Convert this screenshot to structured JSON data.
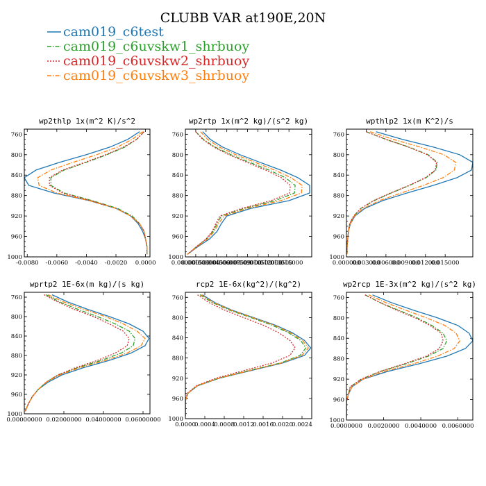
{
  "figure": {
    "title": "CLUBB VAR at190E,20N",
    "legend": [
      {
        "name": "cam019_c6test",
        "color": "#1f77b4",
        "dash": "solid"
      },
      {
        "name": "cam019_c6uvskw1_shrbuoy",
        "color": "#2ca02c",
        "dash": "dashdot"
      },
      {
        "name": "cam019_c6uvskw2_shrbuoy",
        "color": "#d62728",
        "dash": "dotted"
      },
      {
        "name": "cam019_c6uvskw3_shrbuoy",
        "color": "#ff7f0e",
        "dash": "dashdot"
      }
    ]
  },
  "chart_data": [
    {
      "type": "line",
      "title": "wp2thlp  1x(m^2 K)/s^2",
      "ylim": [
        1000,
        750
      ],
      "xlim": [
        -0.0082,
        0.0003
      ],
      "yticks": [
        "760",
        "800",
        "840",
        "880",
        "920",
        "960",
        "1000"
      ],
      "xticks": [
        {
          "v": -0.008,
          "label": "-0.0080"
        },
        {
          "v": -0.006,
          "label": "-0.0060"
        },
        {
          "v": -0.004,
          "label": "-0.0040"
        },
        {
          "v": -0.002,
          "label": "-0.0020"
        },
        {
          "v": 0.0,
          "label": "0.0000"
        }
      ],
      "y": [
        755,
        770,
        785,
        800,
        815,
        830,
        845,
        860,
        875,
        890,
        905,
        920,
        935,
        950,
        965,
        980,
        995
      ],
      "series": [
        {
          "values": [
            -0.0004,
            -0.0012,
            -0.0024,
            -0.004,
            -0.0058,
            -0.0074,
            -0.0082,
            -0.0079,
            -0.0062,
            -0.0038,
            -0.002,
            -0.001,
            -0.0005,
            -0.0002,
            0.0,
            0.0001,
            0.0001
          ]
        },
        {
          "values": [
            -0.0001,
            -0.0006,
            -0.0014,
            -0.0026,
            -0.004,
            -0.0055,
            -0.0064,
            -0.0064,
            -0.0055,
            -0.0036,
            -0.0019,
            -0.0009,
            -0.0004,
            -0.0001,
            0.0,
            0.0001,
            0.0001
          ]
        },
        {
          "values": [
            -0.0001,
            -0.0006,
            -0.0015,
            -0.0027,
            -0.0041,
            -0.0056,
            -0.0065,
            -0.0065,
            -0.0056,
            -0.0037,
            -0.002,
            -0.001,
            -0.0004,
            -0.0001,
            0.0,
            0.0001,
            0.0001
          ]
        },
        {
          "values": [
            -0.0002,
            -0.0009,
            -0.0019,
            -0.0033,
            -0.0049,
            -0.0064,
            -0.0073,
            -0.0072,
            -0.006,
            -0.0038,
            -0.002,
            -0.001,
            -0.0004,
            -0.0001,
            0.0,
            0.0001,
            0.0001
          ]
        }
      ]
    },
    {
      "type": "line",
      "title": "wp2rtp  1x(m^2 kg)/(s^2 kg)",
      "ylim": [
        1000,
        750
      ],
      "xlim": [
        0.0,
        0.0183
      ],
      "yticks": [
        "760",
        "800",
        "840",
        "880",
        "920",
        "960",
        "1000"
      ],
      "xticks": [
        {
          "v": 0.0,
          "label": "0.000000"
        },
        {
          "v": 0.0015,
          "label": "0.001500"
        },
        {
          "v": 0.003,
          "label": "0.003000"
        },
        {
          "v": 0.0045,
          "label": "0.004500"
        },
        {
          "v": 0.006,
          "label": "0.006000"
        },
        {
          "v": 0.0075,
          "label": "0.007500"
        },
        {
          "v": 0.009,
          "label": "0.009000"
        },
        {
          "v": 0.0105,
          "label": "0.010500"
        },
        {
          "v": 0.012,
          "label": "0.012000"
        },
        {
          "v": 0.0135,
          "label": "0.013500"
        },
        {
          "v": 0.015,
          "label": "0.015000"
        }
      ],
      "y": [
        755,
        770,
        785,
        800,
        815,
        830,
        845,
        860,
        875,
        890,
        905,
        920,
        935,
        950,
        965,
        980,
        995
      ],
      "series": [
        {
          "values": [
            0.0025,
            0.0036,
            0.0054,
            0.0079,
            0.0108,
            0.0138,
            0.0163,
            0.018,
            0.018,
            0.015,
            0.0095,
            0.006,
            0.0052,
            0.0046,
            0.0035,
            0.0018,
            0.0003
          ]
        },
        {
          "values": [
            0.0015,
            0.0026,
            0.0043,
            0.0066,
            0.0093,
            0.0121,
            0.0145,
            0.0159,
            0.0158,
            0.013,
            0.0085,
            0.0052,
            0.0046,
            0.004,
            0.0031,
            0.0016,
            0.0003
          ]
        },
        {
          "values": [
            0.0015,
            0.0025,
            0.0041,
            0.0063,
            0.0089,
            0.0116,
            0.0139,
            0.0152,
            0.0151,
            0.0124,
            0.0082,
            0.005,
            0.0044,
            0.0039,
            0.003,
            0.0016,
            0.0003
          ]
        },
        {
          "values": [
            0.0022,
            0.0032,
            0.0049,
            0.0073,
            0.0101,
            0.0129,
            0.0153,
            0.0169,
            0.0168,
            0.0138,
            0.009,
            0.0056,
            0.0048,
            0.0042,
            0.0032,
            0.0017,
            0.0003
          ]
        }
      ]
    },
    {
      "type": "line",
      "title": "wpthlp2  1x(m K^2)/s",
      "ylim": [
        1000,
        750
      ],
      "xlim": [
        0.0,
        0.0192
      ],
      "yticks": [
        "760",
        "800",
        "840",
        "880",
        "920",
        "960",
        "1000"
      ],
      "xticks": [
        {
          "v": 0.0,
          "label": "0.000000"
        },
        {
          "v": 0.003,
          "label": "0.003000"
        },
        {
          "v": 0.006,
          "label": "0.006000"
        },
        {
          "v": 0.009,
          "label": "0.009000"
        },
        {
          "v": 0.012,
          "label": "0.012000"
        },
        {
          "v": 0.015,
          "label": "0.015000"
        }
      ],
      "y": [
        755,
        770,
        785,
        800,
        815,
        830,
        845,
        860,
        875,
        890,
        905,
        920,
        935,
        950,
        965,
        980,
        995
      ],
      "series": [
        {
          "values": [
            0.0045,
            0.0085,
            0.0132,
            0.0172,
            0.0192,
            0.019,
            0.0168,
            0.0132,
            0.0092,
            0.0055,
            0.0028,
            0.0013,
            0.0006,
            0.0003,
            0.0002,
            0.0001,
            0.0001
          ]
        },
        {
          "values": [
            0.003,
            0.006,
            0.0095,
            0.0124,
            0.0138,
            0.0136,
            0.0121,
            0.0096,
            0.0068,
            0.0042,
            0.0022,
            0.0011,
            0.0005,
            0.0003,
            0.0002,
            0.0001,
            0.0001
          ]
        },
        {
          "values": [
            0.003,
            0.006,
            0.0094,
            0.0123,
            0.0137,
            0.0135,
            0.012,
            0.0095,
            0.0067,
            0.0041,
            0.0022,
            0.0011,
            0.0005,
            0.0003,
            0.0002,
            0.0001,
            0.0001
          ]
        },
        {
          "values": [
            0.0036,
            0.0071,
            0.0112,
            0.0148,
            0.0166,
            0.0164,
            0.0147,
            0.0117,
            0.0083,
            0.005,
            0.0026,
            0.0012,
            0.0006,
            0.0003,
            0.0002,
            0.0001,
            0.0001
          ]
        }
      ]
    },
    {
      "type": "line",
      "title": "wprtp2  1E-6x(m kg)/(s kg)",
      "ylim": [
        1000,
        750
      ],
      "xlim": [
        0.0,
        0.0635
      ],
      "yticks": [
        "760",
        "800",
        "840",
        "880",
        "920",
        "960",
        "1000"
      ],
      "xticks": [
        {
          "v": 0.0,
          "label": "0.00000000"
        },
        {
          "v": 0.02,
          "label": "0.02000000"
        },
        {
          "v": 0.04,
          "label": "0.04000000"
        },
        {
          "v": 0.06,
          "label": "0.06000000"
        }
      ],
      "y": [
        755,
        770,
        785,
        800,
        815,
        830,
        845,
        860,
        875,
        890,
        905,
        920,
        935,
        950,
        965,
        980,
        995
      ],
      "series": [
        {
          "values": [
            0.014,
            0.022,
            0.032,
            0.043,
            0.053,
            0.06,
            0.063,
            0.061,
            0.054,
            0.043,
            0.03,
            0.019,
            0.012,
            0.007,
            0.004,
            0.002,
            0.0005
          ]
        },
        {
          "values": [
            0.011,
            0.018,
            0.027,
            0.037,
            0.046,
            0.053,
            0.056,
            0.055,
            0.049,
            0.039,
            0.027,
            0.017,
            0.011,
            0.007,
            0.004,
            0.002,
            0.0005
          ]
        },
        {
          "values": [
            0.01,
            0.017,
            0.025,
            0.035,
            0.043,
            0.05,
            0.053,
            0.052,
            0.046,
            0.037,
            0.026,
            0.017,
            0.011,
            0.007,
            0.004,
            0.002,
            0.0005
          ]
        },
        {
          "values": [
            0.012,
            0.02,
            0.03,
            0.041,
            0.05,
            0.057,
            0.061,
            0.059,
            0.052,
            0.041,
            0.028,
            0.018,
            0.011,
            0.007,
            0.004,
            0.002,
            0.0005
          ]
        }
      ]
    },
    {
      "type": "line",
      "title": "rcp2  1E-6x(kg^2)/(kg^2)",
      "ylim": [
        1000,
        750
      ],
      "xlim": [
        0.0,
        0.0026
      ],
      "yticks": [
        "760",
        "800",
        "840",
        "880",
        "920",
        "960",
        "1000"
      ],
      "xticks": [
        {
          "v": 0.0,
          "label": "0.0000"
        },
        {
          "v": 0.0004,
          "label": "0.0004"
        },
        {
          "v": 0.0008,
          "label": "0.0008"
        },
        {
          "v": 0.0012,
          "label": "0.0012"
        },
        {
          "v": 0.0016,
          "label": "0.0016"
        },
        {
          "v": 0.002,
          "label": "0.0020"
        },
        {
          "v": 0.0024,
          "label": "0.0024"
        }
      ],
      "y": [
        755,
        770,
        785,
        800,
        815,
        830,
        845,
        860,
        875,
        890,
        905,
        920,
        935,
        950,
        965,
        980,
        995
      ],
      "series": [
        {
          "values": [
            0.00035,
            0.0006,
            0.00095,
            0.0014,
            0.00185,
            0.0022,
            0.00245,
            0.00258,
            0.00245,
            0.002,
            0.00135,
            0.0007,
            0.00025,
            5e-05,
            0.0,
            0.0,
            0.0
          ]
        },
        {
          "values": [
            0.0003,
            0.00055,
            0.0009,
            0.00135,
            0.00178,
            0.00212,
            0.00237,
            0.00248,
            0.00236,
            0.00195,
            0.0013,
            0.00068,
            0.00024,
            5e-05,
            0.0,
            0.0,
            0.0
          ]
        },
        {
          "values": [
            0.00025,
            0.00048,
            0.0008,
            0.0012,
            0.0016,
            0.00192,
            0.00215,
            0.00226,
            0.00215,
            0.00178,
            0.0012,
            0.00063,
            0.00022,
            4e-05,
            0.0,
            0.0,
            0.0
          ]
        },
        {
          "values": [
            0.00032,
            0.00058,
            0.00093,
            0.00138,
            0.00182,
            0.00216,
            0.00241,
            0.00253,
            0.0024,
            0.00197,
            0.00132,
            0.00069,
            0.00024,
            5e-05,
            0.0,
            0.0,
            0.0
          ]
        }
      ]
    },
    {
      "type": "line",
      "title": "wp2rcp  1E-3x(m^2 kg)/(s^2 kg)",
      "ylim": [
        1000,
        750
      ],
      "xlim": [
        0.0,
        0.0068
      ],
      "yticks": [
        "760",
        "800",
        "840",
        "880",
        "920",
        "960",
        "1000"
      ],
      "xticks": [
        {
          "v": 0.0,
          "label": "0.0000000"
        },
        {
          "v": 0.002,
          "label": "0.0020000"
        },
        {
          "v": 0.004,
          "label": "0.0040000"
        },
        {
          "v": 0.006,
          "label": "0.0060000"
        }
      ],
      "y": [
        755,
        770,
        785,
        800,
        815,
        830,
        845,
        860,
        875,
        890,
        905,
        920,
        935,
        950,
        965,
        980,
        995
      ],
      "series": [
        {
          "values": [
            0.0014,
            0.0024,
            0.0036,
            0.0049,
            0.006,
            0.0066,
            0.0068,
            0.0064,
            0.0054,
            0.0039,
            0.0022,
            0.0009,
            0.0003,
            0.0001,
            0.0,
            0.0,
            0.0
          ]
        },
        {
          "values": [
            0.001,
            0.0018,
            0.0028,
            0.0038,
            0.0046,
            0.0052,
            0.0054,
            0.0052,
            0.0044,
            0.0032,
            0.0018,
            0.0008,
            0.0002,
            0.0001,
            0.0,
            0.0,
            0.0
          ]
        },
        {
          "values": [
            0.001,
            0.0018,
            0.0027,
            0.0037,
            0.0045,
            0.0051,
            0.0052,
            0.005,
            0.0043,
            0.0031,
            0.0018,
            0.0008,
            0.0002,
            0.0001,
            0.0,
            0.0,
            0.0
          ]
        },
        {
          "values": [
            0.0012,
            0.0021,
            0.0032,
            0.0043,
            0.0053,
            0.0059,
            0.0061,
            0.0058,
            0.0049,
            0.0036,
            0.002,
            0.0009,
            0.0003,
            0.0001,
            0.0,
            0.0,
            0.0
          ]
        }
      ]
    }
  ]
}
